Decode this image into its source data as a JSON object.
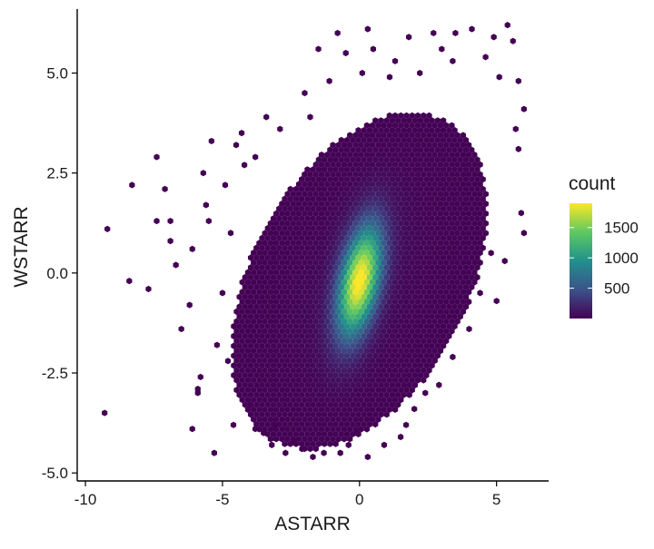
{
  "chart_data": {
    "type": "heatmap",
    "subtype": "hexbin",
    "title": "",
    "xlabel": "ASTARR",
    "ylabel": "WSTARR",
    "xlim": [
      -10.3,
      6.9
    ],
    "ylim": [
      -5.2,
      6.6
    ],
    "x_ticks": [
      -10,
      -5,
      0,
      5
    ],
    "x_tick_labels": [
      "-10",
      "-5",
      "0",
      "5"
    ],
    "y_ticks": [
      -5,
      -2.5,
      0,
      2.5,
      5
    ],
    "y_tick_labels": [
      "-5.0",
      "-2.5",
      "0.0",
      "2.5",
      "5.0"
    ],
    "grid": false,
    "legend": {
      "title": "count",
      "placement": "right",
      "range": [
        0,
        1900
      ],
      "breaks": [
        500,
        1000,
        1500
      ],
      "break_labels": [
        "500",
        "1000",
        "1500"
      ]
    },
    "colormap": [
      "#440154",
      "#3b528b",
      "#21918c",
      "#5ec962",
      "#fde725"
    ],
    "density": {
      "center": [
        0.0,
        -0.2
      ],
      "peak_count": 1900,
      "core_sd": [
        0.55,
        0.95
      ],
      "correlation": 0.45,
      "body_sd": [
        1.9,
        2.0
      ]
    },
    "outlier_points": [
      [
        -9.2,
        1.1
      ],
      [
        -9.3,
        -3.5
      ],
      [
        -8.3,
        2.2
      ],
      [
        -8.4,
        -0.2
      ],
      [
        -7.4,
        2.9
      ],
      [
        -7.4,
        1.3
      ],
      [
        -7.7,
        -0.4
      ],
      [
        -7.1,
        2.1
      ],
      [
        -6.9,
        0.8
      ],
      [
        -6.7,
        0.2
      ],
      [
        -6.5,
        -1.4
      ],
      [
        -6.9,
        1.3
      ],
      [
        -6.2,
        -0.8
      ],
      [
        -5.7,
        2.5
      ],
      [
        -5.3,
        -4.5
      ],
      [
        -5.5,
        1.3
      ],
      [
        -5.8,
        -2.6
      ],
      [
        -5.9,
        -2.9
      ],
      [
        -5.2,
        -1.8
      ],
      [
        -6.1,
        0.6
      ],
      [
        -5.9,
        -3.0
      ],
      [
        -6.1,
        -3.9
      ],
      [
        -5.4,
        3.3
      ],
      [
        -5.0,
        -0.5
      ],
      [
        -5.6,
        1.7
      ],
      [
        -4.2,
        2.7
      ],
      [
        -4.5,
        3.2
      ],
      [
        -4.0,
        -3.3
      ],
      [
        -4.6,
        -3.8
      ],
      [
        -4.3,
        3.5
      ],
      [
        -3.1,
        -3.8
      ],
      [
        -3.8,
        -3.9
      ],
      [
        -3.5,
        -4.0
      ],
      [
        -3.2,
        -4.3
      ],
      [
        -2.7,
        -4.5
      ],
      [
        -3.4,
        3.9
      ],
      [
        -2.9,
        3.6
      ],
      [
        -1.5,
        5.6
      ],
      [
        -1.1,
        4.8
      ],
      [
        -0.8,
        6.0
      ],
      [
        -0.5,
        5.5
      ],
      [
        0.3,
        6.1
      ],
      [
        0.5,
        5.6
      ],
      [
        1.3,
        5.3
      ],
      [
        1.8,
        5.9
      ],
      [
        2.7,
        6.0
      ],
      [
        3.4,
        5.3
      ],
      [
        3.5,
        6.0
      ],
      [
        4.1,
        6.1
      ],
      [
        4.9,
        5.9
      ],
      [
        5.4,
        6.2
      ],
      [
        5.6,
        5.8
      ],
      [
        5.8,
        4.8
      ],
      [
        6.0,
        4.1
      ],
      [
        5.7,
        3.6
      ],
      [
        5.8,
        3.1
      ],
      [
        5.9,
        1.5
      ],
      [
        6.0,
        1.0
      ],
      [
        5.3,
        0.3
      ],
      [
        5.0,
        -0.7
      ],
      [
        4.4,
        -0.5
      ],
      [
        4.0,
        -1.4
      ],
      [
        3.4,
        -2.1
      ],
      [
        2.9,
        -2.8
      ],
      [
        2.4,
        -3.0
      ],
      [
        1.7,
        -3.8
      ],
      [
        1.5,
        -4.1
      ],
      [
        0.9,
        -4.3
      ],
      [
        0.3,
        -4.6
      ],
      [
        -0.4,
        -4.3
      ],
      [
        -0.7,
        -4.5
      ],
      [
        -1.3,
        -4.5
      ],
      [
        -1.7,
        -4.6
      ],
      [
        -2.1,
        -4.4
      ],
      [
        -2.4,
        -4.2
      ],
      [
        1.1,
        4.9
      ],
      [
        2.2,
        5.0
      ],
      [
        3.0,
        5.6
      ],
      [
        -2.0,
        4.5
      ],
      [
        -1.8,
        3.9
      ],
      [
        0.1,
        5.0
      ],
      [
        4.6,
        5.4
      ],
      [
        5.1,
        4.9
      ],
      [
        4.8,
        0.5
      ],
      [
        -4.8,
        -2.2
      ],
      [
        -4.7,
        1.0
      ],
      [
        -4.9,
        2.2
      ],
      [
        -3.8,
        2.9
      ],
      [
        2.0,
        -3.4
      ],
      [
        -0.1,
        -4.0
      ]
    ]
  }
}
